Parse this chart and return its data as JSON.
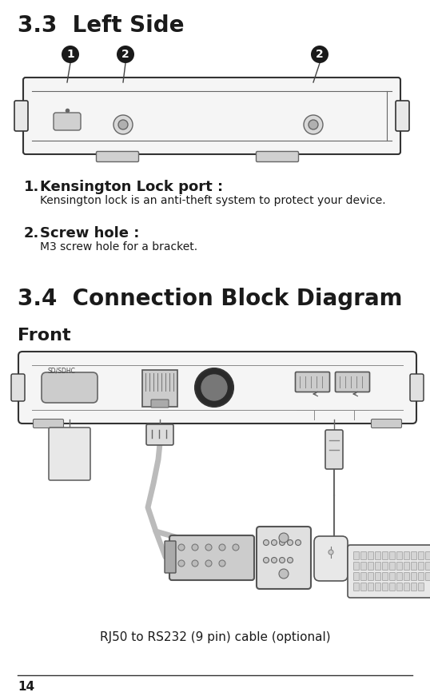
{
  "bg_color": "#ffffff",
  "page_num": "14",
  "section_33_title": "3.3  Left Side",
  "section_34_title": "3.4  Connection Block Diagram",
  "front_label": "Front",
  "caption": "RJ50 to RS232 (9 pin) cable (optional)",
  "item1_bold": "Kensington Lock port :",
  "item1_desc": "Kensington lock is an anti-theft system to protect your device.",
  "item2_bold": "Screw hole :",
  "item2_desc": "M3 screw hole for a bracket.",
  "text_color": "#1a1a1a",
  "circle_color": "#1a1a1a",
  "circle_text_color": "#ffffff",
  "line_color": "#444444",
  "device_face": "#f5f5f5",
  "device_edge": "#333333"
}
